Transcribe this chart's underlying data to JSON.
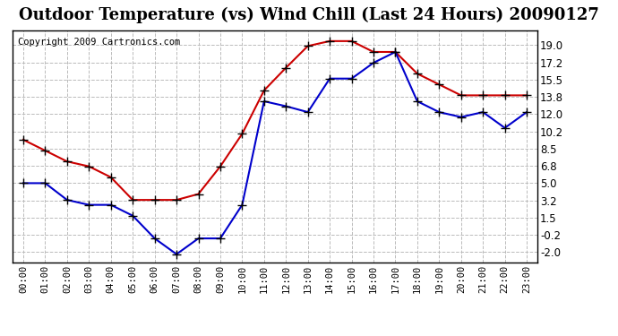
{
  "title": "Outdoor Temperature (vs) Wind Chill (Last 24 Hours) 20090127",
  "copyright": "Copyright 2009 Cartronics.com",
  "hours": [
    "00:00",
    "01:00",
    "02:00",
    "03:00",
    "04:00",
    "05:00",
    "06:00",
    "07:00",
    "08:00",
    "09:00",
    "10:00",
    "11:00",
    "12:00",
    "13:00",
    "14:00",
    "15:00",
    "16:00",
    "17:00",
    "18:00",
    "19:00",
    "20:00",
    "21:00",
    "22:00",
    "23:00"
  ],
  "temp": [
    9.4,
    8.3,
    7.2,
    6.7,
    5.6,
    3.3,
    3.3,
    3.3,
    3.9,
    6.7,
    10.0,
    14.4,
    16.7,
    18.9,
    19.4,
    19.4,
    18.3,
    18.3,
    16.1,
    15.0,
    13.9,
    13.9,
    13.9,
    13.9
  ],
  "windchill": [
    5.0,
    5.0,
    3.3,
    2.8,
    2.8,
    1.7,
    -0.6,
    -2.2,
    -0.6,
    -0.6,
    2.8,
    13.3,
    12.8,
    12.2,
    15.6,
    15.6,
    17.2,
    18.3,
    13.3,
    12.2,
    11.7,
    12.2,
    10.6,
    12.2
  ],
  "temp_color": "#cc0000",
  "windchill_color": "#0000cc",
  "background_color": "#ffffff",
  "plot_bg_color": "#ffffff",
  "grid_color": "#bbbbbb",
  "yticks": [
    -2.0,
    -0.2,
    1.5,
    3.2,
    5.0,
    6.8,
    8.5,
    10.2,
    12.0,
    13.8,
    15.5,
    17.2,
    19.0
  ],
  "ylim": [
    -3.0,
    20.5
  ],
  "title_fontsize": 13,
  "copyright_fontsize": 7.5,
  "marker": "+",
  "marker_color": "#000000",
  "marker_size": 7,
  "line_width": 1.5
}
